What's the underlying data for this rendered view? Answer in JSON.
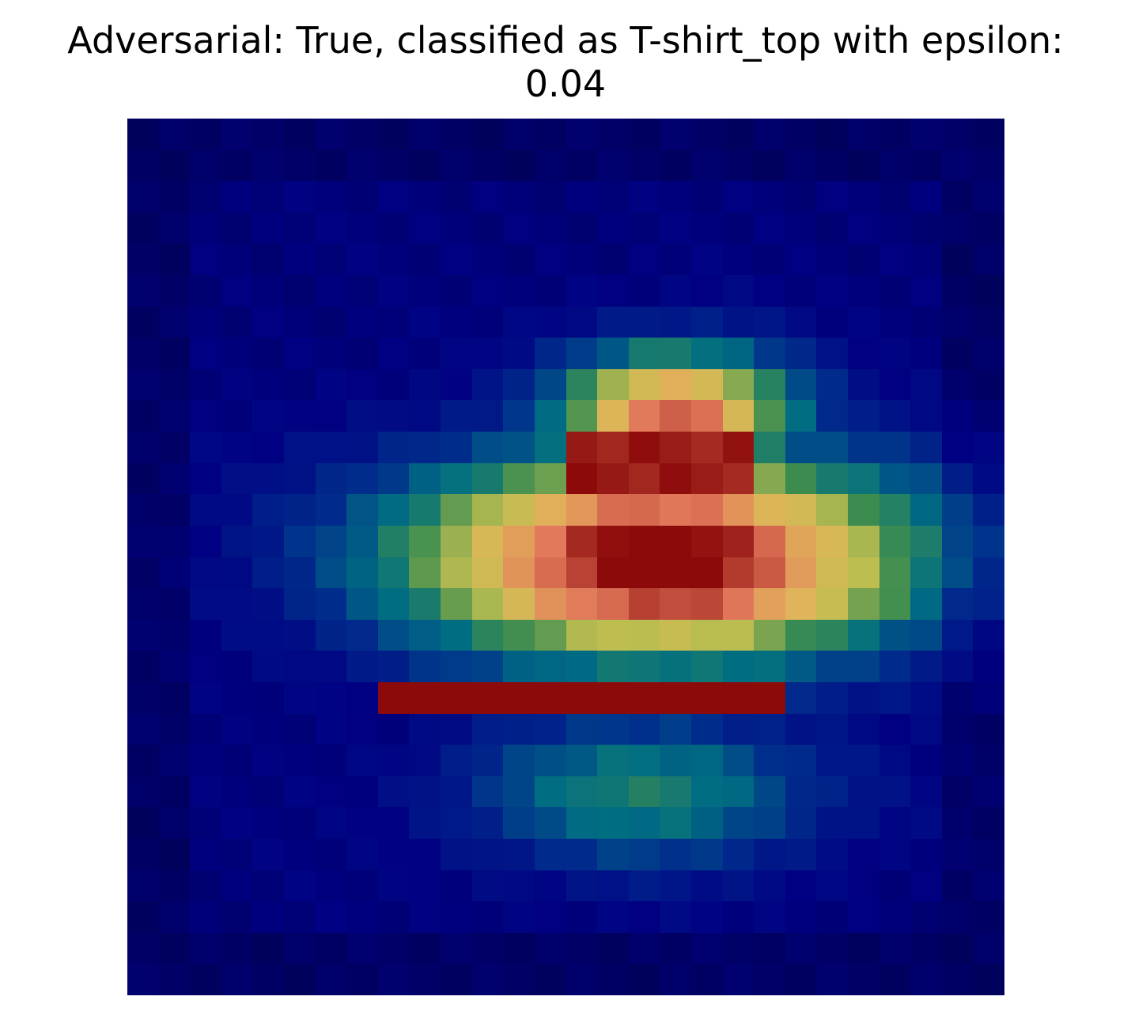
{
  "title": {
    "line1": "Adversarial: True, classified as T-shirt_top with epsilon:",
    "line2": "0.04"
  },
  "image": {
    "description_name": "adversarial-saliency-heatmap",
    "grid_size": 28,
    "colormap": "gist_earth-like overlay (dark blue -> teal -> yellow -> red)"
  }
}
